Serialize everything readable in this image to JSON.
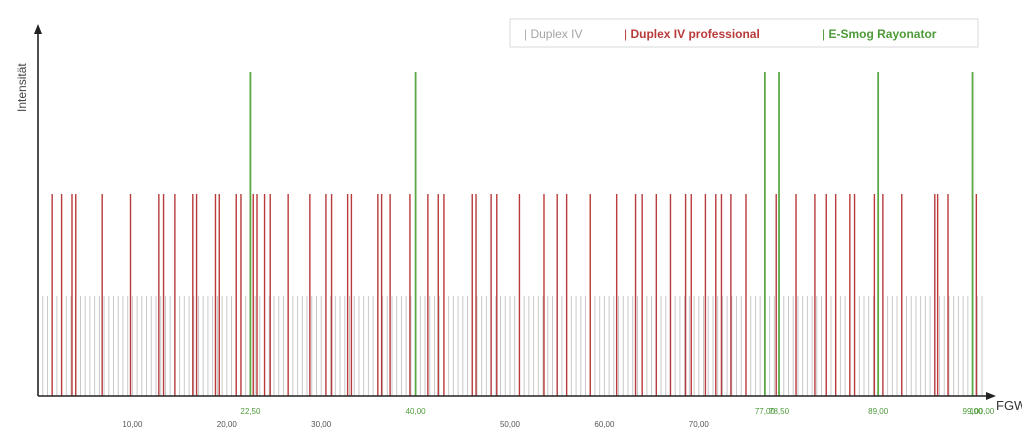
{
  "chart_data": {
    "type": "bar",
    "xlabel": "FGW",
    "ylabel": "Intensität",
    "xlim": [
      0,
      100
    ],
    "x_ticks": [
      {
        "value": 10,
        "label": "10,00"
      },
      {
        "value": 20,
        "label": "20,00"
      },
      {
        "value": 30,
        "label": "30,00"
      },
      {
        "value": 50,
        "label": "50,00"
      },
      {
        "value": 60,
        "label": "60,00"
      },
      {
        "value": 70,
        "label": "70,00"
      }
    ],
    "top_ticks": [
      {
        "value": 22.5,
        "label": "22,50"
      },
      {
        "value": 40,
        "label": "40,00"
      },
      {
        "value": 77,
        "label": "77,00"
      },
      {
        "value": 78.5,
        "label": "78,50"
      },
      {
        "value": 89,
        "label": "89,00"
      },
      {
        "value": 99,
        "label": "99,00"
      },
      {
        "value": 100,
        "label": "100,00"
      }
    ],
    "series": [
      {
        "name": "Duplex IV",
        "color": "#c8c8c8",
        "level": 1,
        "x_start": 0.5,
        "x_end": 100,
        "x_step": 0.5
      },
      {
        "name": "Duplex IV professional",
        "color": "#b83a3a",
        "level": 2,
        "x": [
          1.5,
          2.5,
          3.6,
          4.0,
          6.8,
          9.8,
          12.8,
          13.3,
          14.5,
          16.4,
          16.8,
          18.8,
          19.2,
          21.0,
          21.5,
          22.8,
          23.2,
          24.0,
          24.6,
          26.5,
          28.8,
          30.5,
          31.1,
          32.8,
          33.2,
          36.0,
          36.4,
          37.3,
          39.4,
          41.3,
          42.4,
          43.0,
          46.0,
          46.4,
          48.0,
          48.6,
          51.0,
          53.6,
          55.0,
          56.0,
          58.5,
          61.3,
          63.3,
          64.0,
          65.5,
          67.0,
          68.6,
          69.2,
          70.7,
          71.8,
          72.4,
          73.4,
          75.0,
          78.2,
          80.3,
          82.3,
          83.5,
          84.5,
          86.0,
          86.5,
          88.6,
          89.5,
          91.5,
          95.0,
          95.3,
          96.4,
          99.4
        ]
      },
      {
        "name": "E-Smog Rayonator",
        "color": "#5aa845",
        "level": 3,
        "x": [
          22.5,
          40,
          77,
          78.5,
          89,
          99
        ]
      }
    ]
  }
}
